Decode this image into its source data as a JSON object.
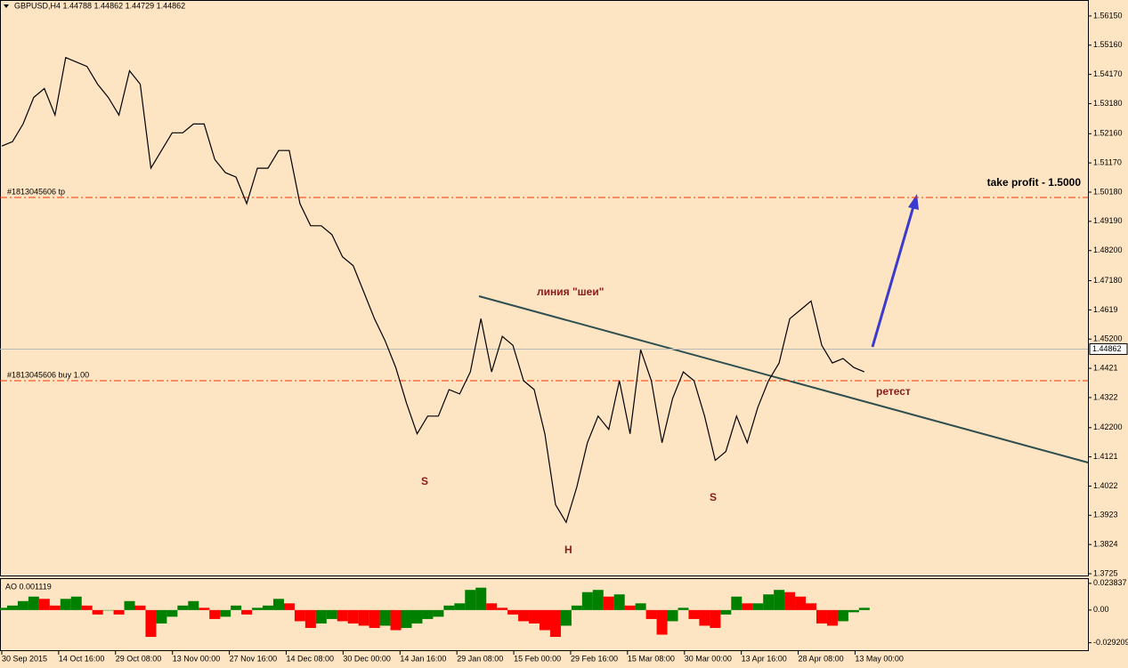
{
  "chart_data": [
    {
      "type": "line",
      "title": "GBPUSD,H4  1.44788 1.44862 1.44729 1.44862",
      "color": "#000000",
      "x": [
        0,
        1,
        2,
        3,
        4,
        5,
        6,
        7,
        8,
        9,
        10,
        11,
        12,
        13,
        14,
        15,
        16,
        17,
        18,
        19,
        20,
        21,
        22,
        23,
        24,
        25,
        26,
        27,
        28,
        29,
        30,
        31,
        32,
        33,
        34,
        35,
        36,
        37,
        38,
        39,
        40,
        41,
        42,
        43,
        44,
        45,
        46,
        47,
        48,
        49,
        50,
        51,
        52,
        53,
        54,
        55,
        56,
        57,
        58,
        59,
        60,
        61,
        62,
        63,
        64,
        65,
        66,
        67,
        68,
        69,
        70,
        71,
        72,
        73,
        74,
        75,
        76,
        77,
        78,
        79,
        80,
        81
      ],
      "values": [
        1.5174,
        1.5189,
        1.5249,
        1.5339,
        1.5369,
        1.5279,
        1.5474,
        1.5459,
        1.5444,
        1.5384,
        1.5339,
        1.5279,
        1.5429,
        1.5384,
        1.5099,
        1.5159,
        1.5219,
        1.5219,
        1.5249,
        1.5249,
        1.5129,
        1.5084,
        1.5069,
        1.4979,
        1.5099,
        1.5099,
        1.5159,
        1.5159,
        1.4979,
        1.4904,
        1.4904,
        1.4874,
        1.4799,
        1.4769,
        1.4679,
        1.4589,
        1.4514,
        1.4424,
        1.4304,
        1.4199,
        1.4259,
        1.4259,
        1.4349,
        1.4334,
        1.4409,
        1.4589,
        1.4409,
        1.4529,
        1.4499,
        1.4379,
        1.4349,
        1.4199,
        1.3959,
        1.3899,
        1.4019,
        1.4169,
        1.4259,
        1.4214,
        1.4379,
        1.4199,
        1.4484,
        1.4379,
        1.4169,
        1.4319,
        1.4409,
        1.4379,
        1.4259,
        1.4109,
        1.4139,
        1.4259,
        1.4169,
        1.4289,
        1.4379,
        1.4439,
        1.4589,
        1.4619,
        1.4649,
        1.4499,
        1.4439,
        1.4454,
        1.4424,
        1.4409
      ],
      "xlim": [
        0,
        102
      ],
      "xticks": [
        {
          "value": 0,
          "label": "30 Sep 2015"
        },
        {
          "value": 5.34,
          "label": "14 Oct 16:00"
        },
        {
          "value": 10.68,
          "label": "29 Oct 08:00"
        },
        {
          "value": 16.03,
          "label": "13 Nov 00:00"
        },
        {
          "value": 21.37,
          "label": "27 Nov 16:00"
        },
        {
          "value": 26.71,
          "label": "14 Dec 08:00"
        },
        {
          "value": 32.05,
          "label": "30 Dec 00:00"
        },
        {
          "value": 37.4,
          "label": "14 Jan 16:00"
        },
        {
          "value": 42.74,
          "label": "29 Jan 08:00"
        },
        {
          "value": 48.08,
          "label": "15 Feb 00:00"
        },
        {
          "value": 53.42,
          "label": "29 Feb 16:00"
        },
        {
          "value": 58.76,
          "label": "15 Mar 08:00"
        },
        {
          "value": 64.11,
          "label": "30 Mar 00:00"
        },
        {
          "value": 69.45,
          "label": "13 Apr 16:00"
        },
        {
          "value": 74.79,
          "label": "28 Apr 08:00"
        },
        {
          "value": 80.13,
          "label": "13 May 00:00"
        }
      ],
      "ylim": [
        1.3716,
        1.5669
      ],
      "yticks": [
        {
          "value": 1.5615,
          "label": "1.56150"
        },
        {
          "value": 1.5516,
          "label": "1.55160"
        },
        {
          "value": 1.5417,
          "label": "1.54170"
        },
        {
          "value": 1.5318,
          "label": "1.53180"
        },
        {
          "value": 1.5216,
          "label": "1.52160"
        },
        {
          "value": 1.5117,
          "label": "1.51170"
        },
        {
          "value": 1.5018,
          "label": "1.50180"
        },
        {
          "value": 1.4919,
          "label": "1.49190"
        },
        {
          "value": 1.482,
          "label": "1.48200"
        },
        {
          "value": 1.4718,
          "label": "1.47180"
        },
        1.4619,
        {
          "value": 1.452,
          "label": "1.45200"
        },
        1.4421,
        1.4322,
        {
          "value": 1.422,
          "label": "1.42200"
        },
        1.4121,
        1.4022,
        1.3923,
        1.3824,
        1.3725
      ],
      "last_price": 1.44862,
      "order_lines": [
        {
          "value": 1.5,
          "label": "#1813045606 tp"
        },
        {
          "value": 1.4379,
          "label": "#1813045606 buy 1.00"
        }
      ],
      "annotations": [
        "S",
        "H",
        "S",
        "линия \"шеи\"",
        "ретест",
        "take profit - 1.5000"
      ]
    },
    {
      "type": "histogram_ao",
      "title": "AO 0.001119",
      "up_color": "#008000",
      "down_color": "#ff0000",
      "values": [
        0.002,
        0.004,
        0.008,
        0.012,
        0.01,
        0.004,
        0.01,
        0.012,
        0.004,
        -0.004,
        0.0,
        -0.004,
        0.008,
        0.004,
        -0.024,
        -0.012,
        -0.006,
        0.004,
        0.008,
        0.002,
        -0.008,
        -0.006,
        0.004,
        -0.004,
        0.002,
        0.004,
        0.01,
        0.006,
        -0.01,
        -0.016,
        -0.012,
        -0.008,
        -0.01,
        -0.012,
        -0.014,
        -0.016,
        -0.014,
        -0.018,
        -0.016,
        -0.012,
        -0.008,
        -0.006,
        0.004,
        0.006,
        0.018,
        0.02,
        0.006,
        0.002,
        -0.004,
        -0.01,
        -0.012,
        -0.018,
        -0.024,
        -0.014,
        0.004,
        0.016,
        0.018,
        0.012,
        0.014,
        0.004,
        0.006,
        -0.008,
        -0.022,
        -0.01,
        0.002,
        -0.008,
        -0.014,
        -0.016,
        -0.004,
        0.012,
        0.006,
        0.006,
        0.014,
        0.018,
        0.016,
        0.012,
        0.006,
        -0.012,
        -0.014,
        -0.01,
        -0.002,
        0.002
      ],
      "ylim": [
        -0.0367,
        0.0277
      ],
      "yticks": [
        0.023837,
        {
          "value": 0,
          "label": "0.00"
        },
        -0.029209
      ]
    }
  ]
}
